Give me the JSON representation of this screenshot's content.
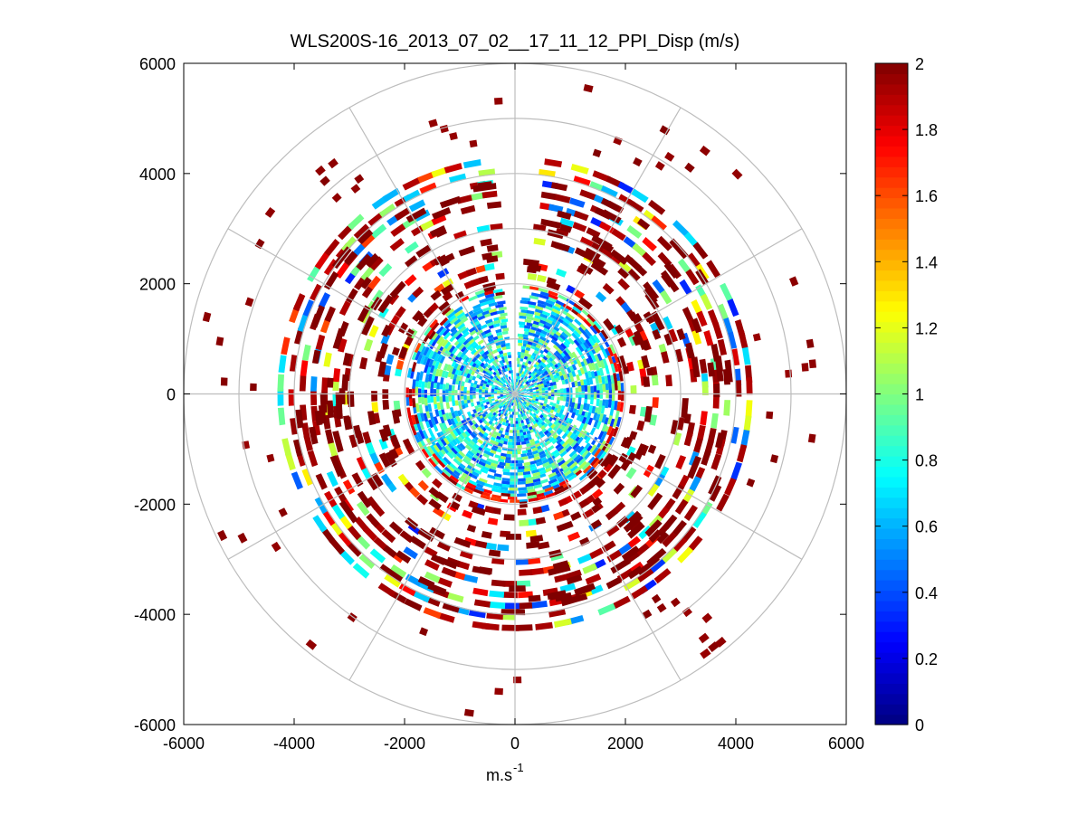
{
  "chart_data": {
    "type": "polar-ppi-scatter",
    "title": "WLS200S-16_2013_07_02__17_11_12_PPI_Disp (m/s)",
    "xlabel": "m.s",
    "xlabel_superscript": "-1",
    "ylabel": "",
    "xlim": [
      -6000,
      6000
    ],
    "ylim": [
      -6000,
      6000
    ],
    "xticks": [
      -6000,
      -4000,
      -2000,
      0,
      2000,
      4000,
      6000
    ],
    "yticks": [
      6000,
      4000,
      2000,
      0,
      -2000,
      -4000,
      -6000
    ],
    "xtick_labels": [
      "-6000",
      "-4000",
      "-2000",
      "0",
      "2000",
      "4000",
      "6000"
    ],
    "ytick_labels": [
      "6000",
      "4000",
      "2000",
      "0",
      "-2000",
      "-4000",
      "-6000"
    ],
    "polar_grid": {
      "ring_radii": [
        1000,
        2000,
        3000,
        4000,
        5000,
        6000
      ],
      "spoke_angles_deg": [
        0,
        30,
        60,
        90,
        120,
        150,
        180,
        210,
        240,
        270,
        300,
        330
      ]
    },
    "colorbar": {
      "min": 0,
      "max": 2,
      "ticks": [
        0,
        0.2,
        0.4,
        0.6,
        0.8,
        1,
        1.2,
        1.4,
        1.6,
        1.8,
        2
      ],
      "tick_labels": [
        "0",
        "0.2",
        "0.4",
        "0.6",
        "0.8",
        "1",
        "1.2",
        "1.4",
        "1.6",
        "1.8",
        "2"
      ],
      "colormap": "jet"
    },
    "data_description_regions": [
      {
        "r_min": 0,
        "r_max": 2000,
        "value_range": [
          0.3,
          1.1
        ]
      },
      {
        "r_min": 2000,
        "r_max": 4500,
        "value_range": [
          0.4,
          2.0
        ]
      },
      {
        "r_min": 4500,
        "r_max": 6000,
        "value_range": [
          1.9,
          2.0
        ]
      }
    ]
  }
}
